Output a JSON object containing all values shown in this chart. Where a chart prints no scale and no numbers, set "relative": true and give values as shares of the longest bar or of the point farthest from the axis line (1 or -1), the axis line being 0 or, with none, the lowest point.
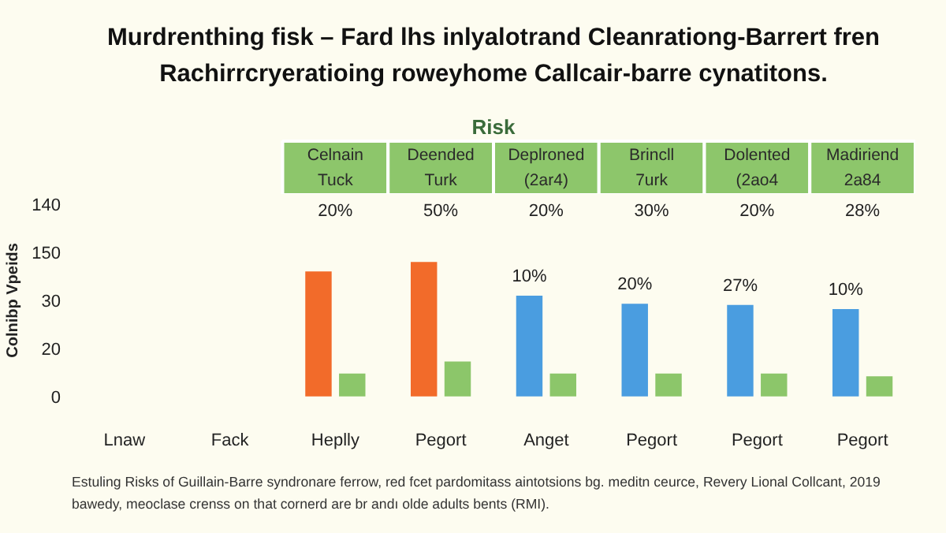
{
  "chart_data": {
    "type": "bar",
    "title": "Murdrenthing fisk – Fard lhs inlyalotrand Cleanrationg-Barrert fren\nRachirrcryeratioing roweyhome Callcair-barre cynatitons.",
    "subtitle": "Risk",
    "ylabel": "Colnibp Vpeids",
    "relative": true,
    "categories": [
      "Lnaw",
      "Fack",
      "Heplly",
      "Pegort",
      "Anget",
      "Pegort",
      "Pegort",
      "Pegort"
    ],
    "series": [
      {
        "colors": [
          "#f26b2a",
          "#f26b2a",
          "#f26b2a",
          "#f26b2a",
          "#4a9de0",
          "#4a9de0",
          "#4a9de0",
          "#4a9de0"
        ],
        "values": [
          null,
          null,
          0.93,
          1,
          0.75,
          0.69,
          0.68,
          0.65
        ]
      },
      {
        "color": "#8cc66a",
        "values": [
          null,
          null,
          0.17,
          0.26,
          0.17,
          0.17,
          0.17,
          0.15
        ]
      }
    ],
    "annotations": [
      "Celnain\nTuck",
      "Deended\nTurk",
      "Deplroned\n(2ar4)",
      "Brincll\n7urk",
      "Dolented\n(2ao4",
      "Madiriend\n2a84",
      "20%",
      "50%",
      "20%",
      "30%",
      "20%",
      "28%",
      "10%",
      "20%",
      "27%",
      "10%",
      "0",
      "20",
      "30",
      "150",
      "140",
      "Estuling Risks of Guillain-Barre syndronare ferrow, red fcet pardomitass aintotsions bg. meditn ceurce, Revery Lional Collcant, 2019\nbawedy, meoclase crenss on that cornerd are br andı olde adults bents (RMI)."
    ]
  }
}
